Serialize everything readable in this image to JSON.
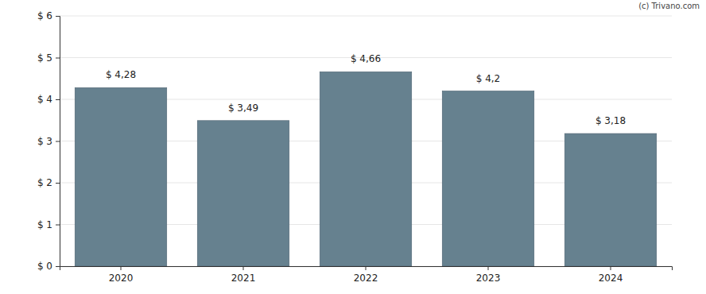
{
  "chart_data": {
    "type": "bar",
    "annotation": "(c) Trivano.com",
    "categories": [
      "2020",
      "2021",
      "2022",
      "2023",
      "2024"
    ],
    "values": [
      4.28,
      3.49,
      4.66,
      4.2,
      3.18
    ],
    "value_labels": [
      "$ 4,28",
      "$ 3,49",
      "$ 4,66",
      "$ 4,2",
      "$ 3,18"
    ],
    "color": "#66818f",
    "ylim": [
      0,
      6
    ],
    "yticks": [
      {
        "value": 0,
        "label": "$ 0"
      },
      {
        "value": 1,
        "label": "$ 1"
      },
      {
        "value": 2,
        "label": "$ 2"
      },
      {
        "value": 3,
        "label": "$ 3"
      },
      {
        "value": 4,
        "label": "$ 4"
      },
      {
        "value": 5,
        "label": "$ 5"
      },
      {
        "value": 6,
        "label": "$ 6"
      }
    ],
    "grid": true,
    "data_labels": true
  }
}
